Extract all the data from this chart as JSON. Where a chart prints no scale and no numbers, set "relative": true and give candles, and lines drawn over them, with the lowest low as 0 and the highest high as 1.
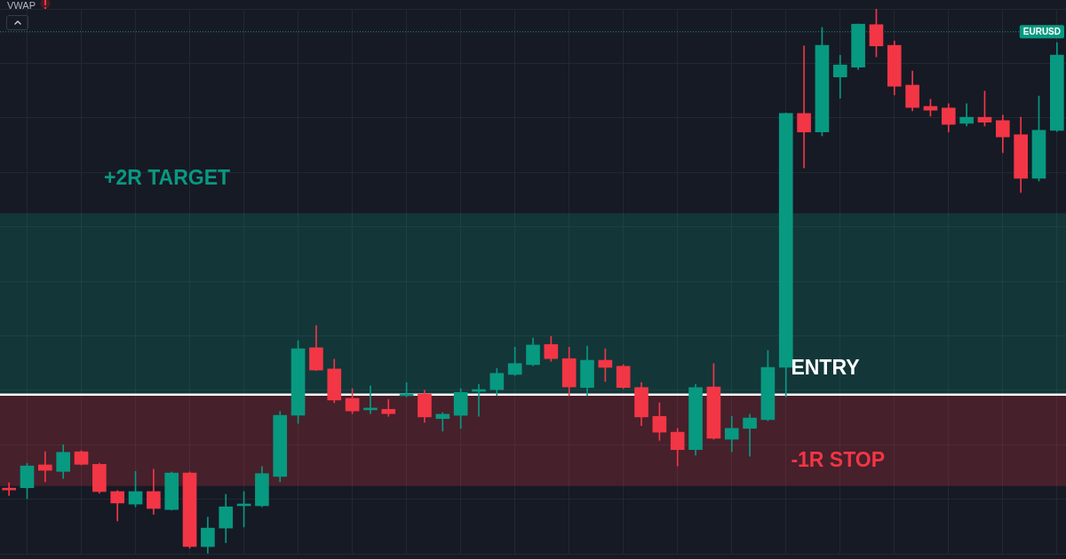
{
  "chart_data": {
    "type": "candlestick",
    "relative": true,
    "grid": true,
    "tick_labels": false,
    "categories": [
      null,
      null,
      null,
      null,
      null,
      null,
      null,
      null,
      null,
      null,
      null,
      null,
      null,
      null,
      null,
      null,
      null,
      null,
      null,
      null,
      null,
      null,
      null,
      null,
      null,
      null,
      null,
      null,
      null,
      null,
      null,
      null,
      null,
      null,
      null,
      null,
      null,
      null,
      null,
      null,
      null,
      null,
      null,
      null,
      null,
      null,
      null,
      null,
      null,
      null,
      null,
      null,
      null,
      null,
      null,
      null,
      null,
      null,
      null
    ],
    "ohlc": [
      [
        0.119,
        0.13,
        0.107,
        0.117
      ],
      [
        0.121,
        0.166,
        0.101,
        0.161
      ],
      [
        0.163,
        0.187,
        0.132,
        0.153
      ],
      [
        0.151,
        0.2,
        0.138,
        0.186
      ],
      [
        0.187,
        0.189,
        0.163,
        0.164
      ],
      [
        0.164,
        0.166,
        0.111,
        0.114
      ],
      [
        0.114,
        0.116,
        0.06,
        0.093
      ],
      [
        0.091,
        0.151,
        0.086,
        0.114
      ],
      [
        0.114,
        0.155,
        0.072,
        0.083
      ],
      [
        0.081,
        0.15,
        0.08,
        0.148
      ],
      [
        0.148,
        0.15,
        0.01,
        0.013
      ],
      [
        0.013,
        0.067,
        0,
        0.047
      ],
      [
        0.047,
        0.109,
        0.02,
        0.086
      ],
      [
        0.088,
        0.114,
        0.049,
        0.091
      ],
      [
        0.088,
        0.16,
        0.086,
        0.147
      ],
      [
        0.142,
        0.261,
        0.132,
        0.254
      ],
      [
        0.254,
        0.391,
        0.239,
        0.376
      ],
      [
        0.378,
        0.419,
        0.336,
        0.337
      ],
      [
        0.339,
        0.357,
        0.277,
        0.282
      ],
      [
        0.285,
        0.303,
        0.257,
        0.262
      ],
      [
        0.264,
        0.308,
        0.257,
        0.267
      ],
      [
        0.265,
        0.283,
        0.252,
        0.257
      ],
      [
        0.29,
        0.314,
        0.288,
        0.293
      ],
      [
        0.293,
        0.3,
        0.241,
        0.251
      ],
      [
        0.248,
        0.259,
        0.225,
        0.256
      ],
      [
        0.254,
        0.303,
        0.23,
        0.296
      ],
      [
        0.298,
        0.311,
        0.252,
        0.301
      ],
      [
        0.301,
        0.34,
        0.29,
        0.331
      ],
      [
        0.329,
        0.379,
        0.327,
        0.349
      ],
      [
        0.347,
        0.396,
        0.345,
        0.383
      ],
      [
        0.384,
        0.399,
        0.353,
        0.358
      ],
      [
        0.358,
        0.379,
        0.29,
        0.306
      ],
      [
        0.305,
        0.381,
        0.29,
        0.355
      ],
      [
        0.355,
        0.376,
        0.316,
        0.342
      ],
      [
        0.344,
        0.347,
        0.303,
        0.305
      ],
      [
        0.305,
        0.314,
        0.235,
        0.251
      ],
      [
        0.252,
        0.277,
        0.208,
        0.223
      ],
      [
        0.223,
        0.23,
        0.161,
        0.191
      ],
      [
        0.191,
        0.311,
        0.181,
        0.305
      ],
      [
        0.306,
        0.349,
        0.21,
        0.212
      ],
      [
        0.21,
        0.252,
        0.187,
        0.23
      ],
      [
        0.23,
        0.256,
        0.179,
        0.249
      ],
      [
        0.246,
        0.373,
        0.244,
        0.342
      ],
      [
        0.342,
        0.809,
        0.288,
        0.808
      ],
      [
        0.808,
        0.932,
        0.708,
        0.774
      ],
      [
        0.774,
        0.966,
        0.767,
        0.933
      ],
      [
        0.875,
        0.915,
        0.836,
        0.897
      ],
      [
        0.893,
        0.972,
        0.889,
        0.972
      ],
      [
        0.971,
        1,
        0.912,
        0.932
      ],
      [
        0.933,
        0.941,
        0.842,
        0.858
      ],
      [
        0.86,
        0.886,
        0.813,
        0.819
      ],
      [
        0.821,
        0.834,
        0.803,
        0.814
      ],
      [
        0.818,
        0.826,
        0.774,
        0.788
      ],
      [
        0.79,
        0.826,
        0.785,
        0.801
      ],
      [
        0.801,
        0.849,
        0.785,
        0.792
      ],
      [
        0.795,
        0.805,
        0.736,
        0.765
      ],
      [
        0.769,
        0.801,
        0.663,
        0.689
      ],
      [
        0.689,
        0.84,
        0.684,
        0.777
      ],
      [
        0.777,
        0.938,
        0.775,
        0.915
      ]
    ],
    "colors": [
      "#f23645",
      "#089981",
      "#f23645",
      "#089981",
      "#f23645",
      "#f23645",
      "#f23645",
      "#089981",
      "#f23645",
      "#089981",
      "#f23645",
      "#089981",
      "#089981",
      "#089981",
      "#089981",
      "#089981",
      "#089981",
      "#f23645",
      "#f23645",
      "#f23645",
      "#089981",
      "#f23645",
      "#089981",
      "#f23645",
      "#089981",
      "#089981",
      "#089981",
      "#089981",
      "#089981",
      "#089981",
      "#f23645",
      "#f23645",
      "#089981",
      "#f23645",
      "#f23645",
      "#f23645",
      "#f23645",
      "#f23645",
      "#089981",
      "#f23645",
      "#089981",
      "#089981",
      "#089981",
      "#089981",
      "#f23645",
      "#089981",
      "#089981",
      "#089981",
      "#f23645",
      "#f23645",
      "#f23645",
      "#f23645",
      "#f23645",
      "#089981",
      "#f23645",
      "#f23645",
      "#f23645",
      "#089981",
      "#089981"
    ],
    "bands": [
      {
        "axis": "y",
        "from": 0.292,
        "to": 0.625,
        "label": "+2R TARGET",
        "color": "#089981"
      },
      {
        "axis": "y",
        "from": 0.124,
        "to": 0.292,
        "label": "-1R STOP",
        "color": "#f23645"
      }
    ],
    "ref_lines": [
      {
        "axis": "y",
        "value": 0.292,
        "label": "ENTRY",
        "color": "#ffffff",
        "line_style": "solid"
      },
      {
        "axis": "y",
        "value": 0.958,
        "label": "EURUSD",
        "color": "#089981",
        "line_style": "dotted"
      }
    ],
    "annotations": [
      "VWAP"
    ]
  }
}
